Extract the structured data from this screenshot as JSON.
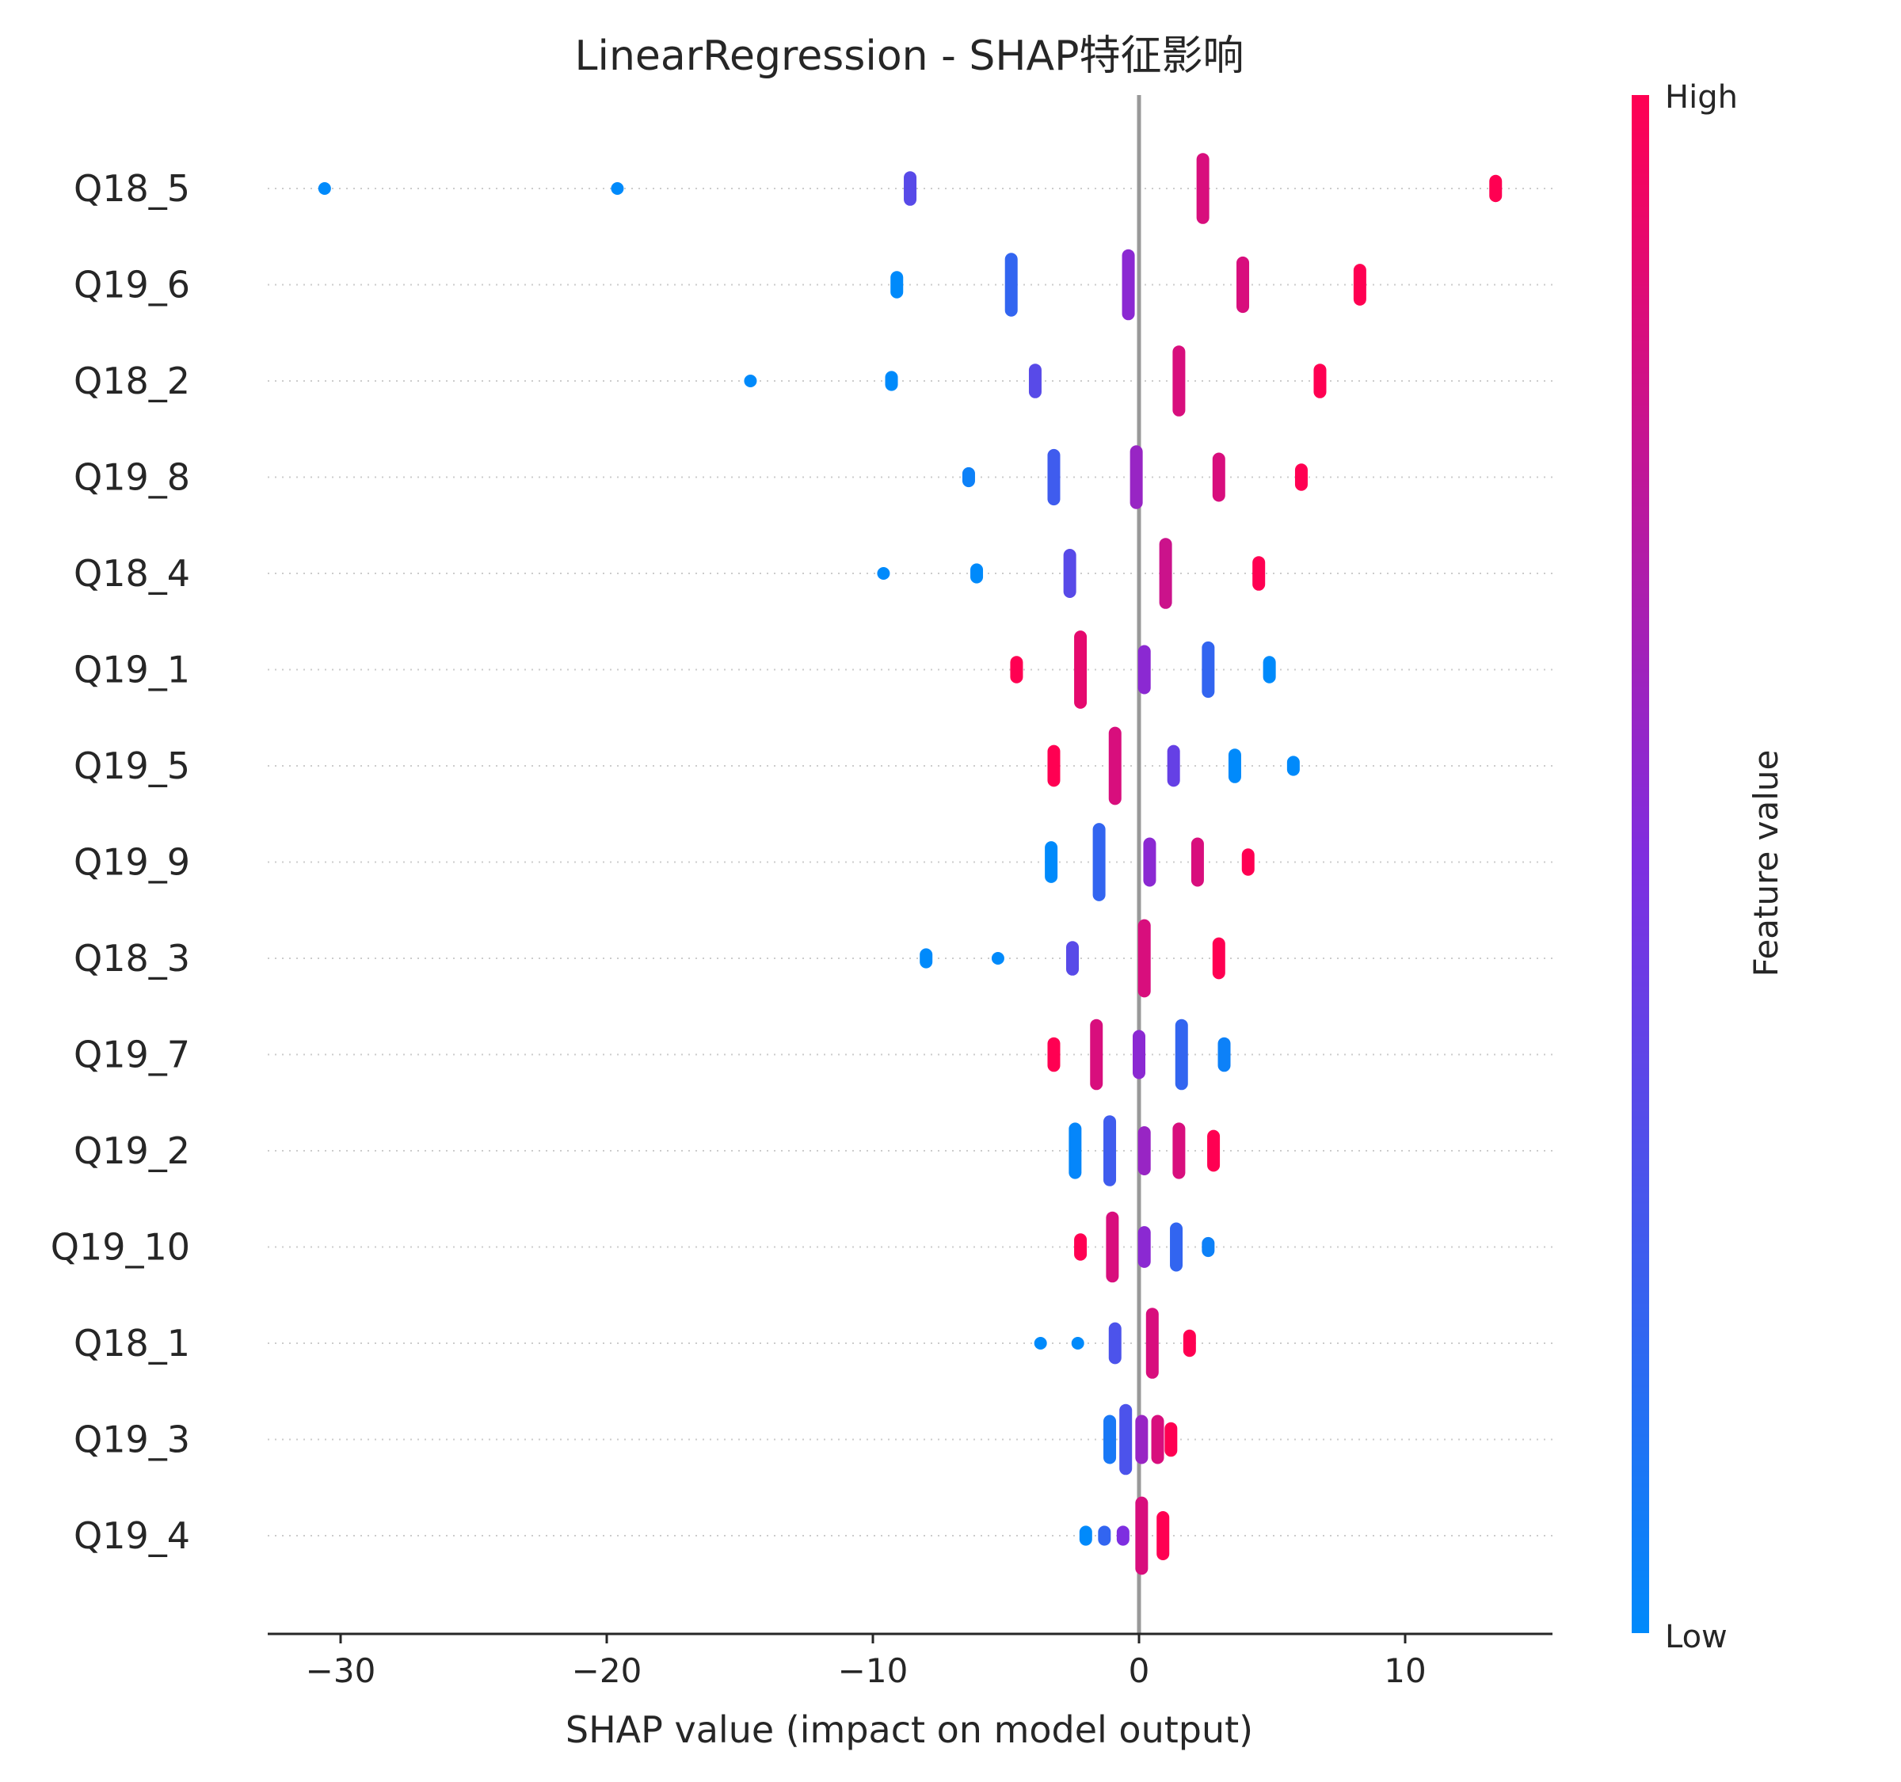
{
  "chart_data": {
    "type": "scatter",
    "title": "LinearRegression - SHAP特征影响",
    "xlabel": "SHAP value (impact on model output)",
    "ylabel": "",
    "xlim": [
      -33,
      15.5
    ],
    "xticks": [
      -30,
      -20,
      -10,
      0,
      10
    ],
    "xtick_labels": [
      "−30",
      "−20",
      "−10",
      "0",
      "10"
    ],
    "features": [
      "Q18_5",
      "Q19_6",
      "Q18_2",
      "Q19_8",
      "Q18_4",
      "Q19_1",
      "Q19_5",
      "Q19_9",
      "Q18_3",
      "Q19_7",
      "Q19_2",
      "Q19_10",
      "Q18_1",
      "Q19_3",
      "Q19_4"
    ],
    "points": [
      {
        "feature": "Q18_5",
        "x": -30.6,
        "v": 0.0,
        "n": 1
      },
      {
        "feature": "Q18_5",
        "x": -19.6,
        "v": 0.0,
        "n": 1
      },
      {
        "feature": "Q18_5",
        "x": -8.6,
        "v": 0.35,
        "n": 4
      },
      {
        "feature": "Q18_5",
        "x": 2.4,
        "v": 0.85,
        "n": 9
      },
      {
        "feature": "Q18_5",
        "x": 13.4,
        "v": 1.0,
        "n": 3
      },
      {
        "feature": "Q19_6",
        "x": -9.1,
        "v": 0.0,
        "n": 3
      },
      {
        "feature": "Q19_6",
        "x": -4.8,
        "v": 0.2,
        "n": 8
      },
      {
        "feature": "Q19_6",
        "x": -0.4,
        "v": 0.55,
        "n": 9
      },
      {
        "feature": "Q19_6",
        "x": 3.9,
        "v": 0.85,
        "n": 7
      },
      {
        "feature": "Q19_6",
        "x": 8.3,
        "v": 1.0,
        "n": 5
      },
      {
        "feature": "Q18_2",
        "x": -14.6,
        "v": 0.0,
        "n": 1
      },
      {
        "feature": "Q18_2",
        "x": -9.3,
        "v": 0.0,
        "n": 2
      },
      {
        "feature": "Q18_2",
        "x": -3.9,
        "v": 0.35,
        "n": 4
      },
      {
        "feature": "Q18_2",
        "x": 1.5,
        "v": 0.85,
        "n": 9
      },
      {
        "feature": "Q18_2",
        "x": 6.8,
        "v": 1.0,
        "n": 4
      },
      {
        "feature": "Q19_8",
        "x": -6.4,
        "v": 0.05,
        "n": 2
      },
      {
        "feature": "Q19_8",
        "x": -3.2,
        "v": 0.25,
        "n": 7
      },
      {
        "feature": "Q19_8",
        "x": -0.1,
        "v": 0.6,
        "n": 8
      },
      {
        "feature": "Q19_8",
        "x": 3.0,
        "v": 0.85,
        "n": 6
      },
      {
        "feature": "Q19_8",
        "x": 6.1,
        "v": 1.0,
        "n": 3
      },
      {
        "feature": "Q18_4",
        "x": -9.6,
        "v": 0.0,
        "n": 1
      },
      {
        "feature": "Q18_4",
        "x": -6.1,
        "v": 0.0,
        "n": 2
      },
      {
        "feature": "Q18_4",
        "x": -2.6,
        "v": 0.35,
        "n": 6
      },
      {
        "feature": "Q18_4",
        "x": 1.0,
        "v": 0.8,
        "n": 9
      },
      {
        "feature": "Q18_4",
        "x": 4.5,
        "v": 1.0,
        "n": 4
      },
      {
        "feature": "Q19_1",
        "x": -4.6,
        "v": 1.0,
        "n": 3
      },
      {
        "feature": "Q19_1",
        "x": -2.2,
        "v": 0.9,
        "n": 10
      },
      {
        "feature": "Q19_1",
        "x": 0.2,
        "v": 0.55,
        "n": 6
      },
      {
        "feature": "Q19_1",
        "x": 2.6,
        "v": 0.2,
        "n": 7
      },
      {
        "feature": "Q19_1",
        "x": 4.9,
        "v": 0.0,
        "n": 3
      },
      {
        "feature": "Q19_5",
        "x": -3.2,
        "v": 1.0,
        "n": 5
      },
      {
        "feature": "Q19_5",
        "x": -0.9,
        "v": 0.85,
        "n": 10
      },
      {
        "feature": "Q19_5",
        "x": 1.3,
        "v": 0.4,
        "n": 5
      },
      {
        "feature": "Q19_5",
        "x": 3.6,
        "v": 0.0,
        "n": 4
      },
      {
        "feature": "Q19_5",
        "x": 5.8,
        "v": 0.0,
        "n": 2
      },
      {
        "feature": "Q19_9",
        "x": -3.3,
        "v": 0.0,
        "n": 5
      },
      {
        "feature": "Q19_9",
        "x": -1.5,
        "v": 0.2,
        "n": 10
      },
      {
        "feature": "Q19_9",
        "x": 0.4,
        "v": 0.55,
        "n": 6
      },
      {
        "feature": "Q19_9",
        "x": 2.2,
        "v": 0.85,
        "n": 6
      },
      {
        "feature": "Q19_9",
        "x": 4.1,
        "v": 1.0,
        "n": 3
      },
      {
        "feature": "Q18_3",
        "x": -8.0,
        "v": 0.0,
        "n": 2
      },
      {
        "feature": "Q18_3",
        "x": -5.3,
        "v": 0.0,
        "n": 1
      },
      {
        "feature": "Q18_3",
        "x": -2.5,
        "v": 0.35,
        "n": 4
      },
      {
        "feature": "Q18_3",
        "x": 0.2,
        "v": 0.85,
        "n": 10
      },
      {
        "feature": "Q18_3",
        "x": 3.0,
        "v": 1.0,
        "n": 5
      },
      {
        "feature": "Q19_7",
        "x": -3.2,
        "v": 1.0,
        "n": 4
      },
      {
        "feature": "Q19_7",
        "x": -1.6,
        "v": 0.85,
        "n": 9
      },
      {
        "feature": "Q19_7",
        "x": 0.0,
        "v": 0.55,
        "n": 6
      },
      {
        "feature": "Q19_7",
        "x": 1.6,
        "v": 0.2,
        "n": 9
      },
      {
        "feature": "Q19_7",
        "x": 3.2,
        "v": 0.05,
        "n": 4
      },
      {
        "feature": "Q19_2",
        "x": -2.4,
        "v": 0.02,
        "n": 7
      },
      {
        "feature": "Q19_2",
        "x": -1.1,
        "v": 0.25,
        "n": 9
      },
      {
        "feature": "Q19_2",
        "x": 0.2,
        "v": 0.6,
        "n": 6
      },
      {
        "feature": "Q19_2",
        "x": 1.5,
        "v": 0.85,
        "n": 7
      },
      {
        "feature": "Q19_2",
        "x": 2.8,
        "v": 1.0,
        "n": 5
      },
      {
        "feature": "Q19_10",
        "x": -2.2,
        "v": 1.0,
        "n": 3
      },
      {
        "feature": "Q19_10",
        "x": -1.0,
        "v": 0.85,
        "n": 9
      },
      {
        "feature": "Q19_10",
        "x": 0.2,
        "v": 0.55,
        "n": 5
      },
      {
        "feature": "Q19_10",
        "x": 1.4,
        "v": 0.2,
        "n": 6
      },
      {
        "feature": "Q19_10",
        "x": 2.6,
        "v": 0.05,
        "n": 2
      },
      {
        "feature": "Q18_1",
        "x": -3.7,
        "v": 0.0,
        "n": 1
      },
      {
        "feature": "Q18_1",
        "x": -2.3,
        "v": 0.0,
        "n": 1
      },
      {
        "feature": "Q18_1",
        "x": -0.9,
        "v": 0.3,
        "n": 5
      },
      {
        "feature": "Q18_1",
        "x": 0.5,
        "v": 0.85,
        "n": 9
      },
      {
        "feature": "Q18_1",
        "x": 1.9,
        "v": 1.0,
        "n": 3
      },
      {
        "feature": "Q19_3",
        "x": -1.1,
        "v": 0.1,
        "n": 6
      },
      {
        "feature": "Q19_3",
        "x": -0.5,
        "v": 0.3,
        "n": 9
      },
      {
        "feature": "Q19_3",
        "x": 0.1,
        "v": 0.6,
        "n": 6
      },
      {
        "feature": "Q19_3",
        "x": 0.7,
        "v": 0.85,
        "n": 6
      },
      {
        "feature": "Q19_3",
        "x": 1.2,
        "v": 1.0,
        "n": 4
      },
      {
        "feature": "Q19_4",
        "x": -2.0,
        "v": 0.0,
        "n": 2
      },
      {
        "feature": "Q19_4",
        "x": -1.3,
        "v": 0.2,
        "n": 2
      },
      {
        "feature": "Q19_4",
        "x": -0.6,
        "v": 0.5,
        "n": 2
      },
      {
        "feature": "Q19_4",
        "x": 0.1,
        "v": 0.85,
        "n": 10
      },
      {
        "feature": "Q19_4",
        "x": 0.9,
        "v": 1.0,
        "n": 6
      }
    ],
    "colorbar": {
      "label": "Feature value",
      "high_label": "High",
      "low_label": "Low",
      "low_color": "#008afb",
      "mid_color": "#7e2ee0",
      "high_color": "#ff0052"
    },
    "grid": "dotted horizontal per feature",
    "zero_line_color": "#999999"
  }
}
